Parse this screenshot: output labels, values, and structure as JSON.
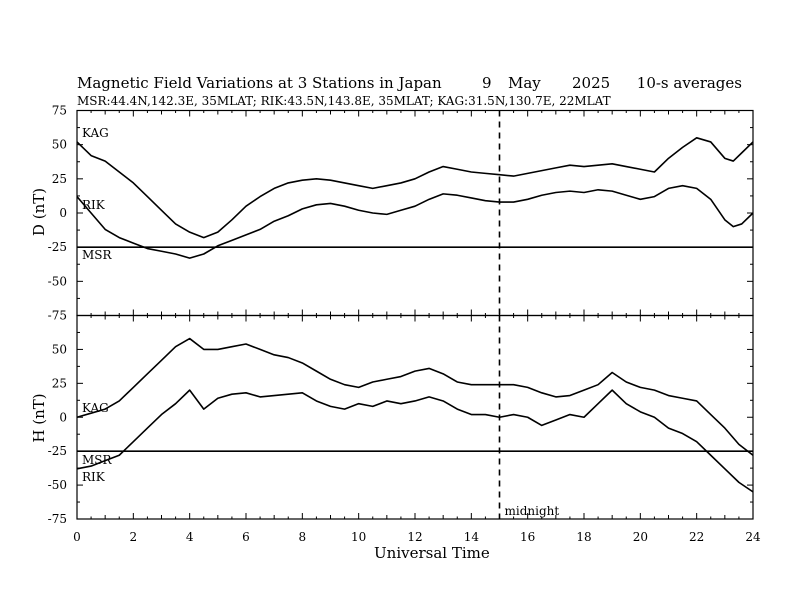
{
  "header": {
    "title": "Magnetic Field Variations at 3 Stations in Japan",
    "day": "9",
    "month": "May",
    "year": "2025",
    "averaging": "10-s averages",
    "stations_line": "MSR:44.4N,142.3E, 35MLAT;  RIK:43.5N,143.8E, 35MLAT;  KAG:31.5N,130.7E, 22MLAT"
  },
  "chart_data": [
    {
      "type": "line",
      "panel": "D",
      "ylabel": "D (nT)",
      "ylim": [
        -75,
        75
      ],
      "yticks": [
        75,
        50,
        25,
        0,
        -25,
        -50,
        -75
      ],
      "xlim": [
        0,
        24
      ],
      "midnight_ut": 15,
      "series": [
        {
          "name": "KAG",
          "x": [
            0,
            0.5,
            1,
            1.5,
            2,
            2.5,
            3,
            3.5,
            4,
            4.5,
            5,
            5.5,
            6,
            6.5,
            7,
            7.5,
            8,
            8.5,
            9,
            9.5,
            10,
            10.5,
            11,
            11.5,
            12,
            12.5,
            13,
            13.5,
            14,
            14.5,
            15,
            15.5,
            16,
            16.5,
            17,
            17.5,
            18,
            18.5,
            19,
            19.5,
            20,
            20.5,
            21,
            21.5,
            22,
            22.5,
            23,
            23.3,
            23.6,
            24
          ],
          "values": [
            52,
            42,
            38,
            30,
            22,
            12,
            2,
            -8,
            -14,
            -18,
            -14,
            -5,
            5,
            12,
            18,
            22,
            24,
            25,
            24,
            22,
            20,
            18,
            20,
            22,
            25,
            30,
            34,
            32,
            30,
            29,
            28,
            27,
            29,
            31,
            33,
            35,
            34,
            35,
            36,
            34,
            32,
            30,
            40,
            48,
            55,
            52,
            40,
            38,
            44,
            52
          ]
        },
        {
          "name": "RIK",
          "x": [
            0,
            0.5,
            1,
            1.5,
            2,
            2.5,
            3,
            3.5,
            4,
            4.5,
            5,
            5.5,
            6,
            6.5,
            7,
            7.5,
            8,
            8.5,
            9,
            9.5,
            10,
            10.5,
            11,
            11.5,
            12,
            12.5,
            13,
            13.5,
            14,
            14.5,
            15,
            15.5,
            16,
            16.5,
            17,
            17.5,
            18,
            18.5,
            19,
            19.5,
            20,
            20.5,
            21,
            21.5,
            22,
            22.5,
            23,
            23.3,
            23.6,
            24
          ],
          "values": [
            12,
            0,
            -12,
            -18,
            -22,
            -26,
            -28,
            -30,
            -33,
            -30,
            -24,
            -20,
            -16,
            -12,
            -6,
            -2,
            3,
            6,
            7,
            5,
            2,
            0,
            -1,
            2,
            5,
            10,
            14,
            13,
            11,
            9,
            8,
            8,
            10,
            13,
            15,
            16,
            15,
            17,
            16,
            13,
            10,
            12,
            18,
            20,
            18,
            10,
            -5,
            -10,
            -8,
            0
          ]
        },
        {
          "name": "MSR",
          "x": [
            0,
            24
          ],
          "values": [
            -25,
            -25
          ]
        }
      ]
    },
    {
      "type": "line",
      "panel": "H",
      "ylabel": "H (nT)",
      "ylim": [
        -75,
        75
      ],
      "yticks": [
        50,
        25,
        0,
        -25,
        -50,
        -75
      ],
      "xlim": [
        0,
        24
      ],
      "xlabel": "Universal Time",
      "xticks": [
        0,
        2,
        4,
        6,
        8,
        10,
        12,
        14,
        16,
        18,
        20,
        22,
        24
      ],
      "annotation": "midnight",
      "series": [
        {
          "name": "KAG",
          "x": [
            0,
            0.5,
            1,
            1.5,
            2,
            2.5,
            3,
            3.5,
            4,
            4.5,
            5,
            5.5,
            6,
            6.5,
            7,
            7.5,
            8,
            8.5,
            9,
            9.5,
            10,
            10.5,
            11,
            11.5,
            12,
            12.5,
            13,
            13.5,
            14,
            14.5,
            15,
            15.5,
            16,
            16.5,
            17,
            17.5,
            18,
            18.5,
            19,
            19.5,
            20,
            20.5,
            21,
            21.5,
            22,
            22.5,
            23,
            23.5,
            24
          ],
          "values": [
            0,
            3,
            6,
            12,
            22,
            32,
            42,
            52,
            58,
            50,
            50,
            52,
            54,
            50,
            46,
            44,
            40,
            34,
            28,
            24,
            22,
            26,
            28,
            30,
            34,
            36,
            32,
            26,
            24,
            24,
            24,
            24,
            22,
            18,
            15,
            16,
            20,
            24,
            33,
            26,
            22,
            20,
            16,
            14,
            12,
            2,
            -8,
            -20,
            -28
          ]
        },
        {
          "name": "RIK",
          "x": [
            0,
            0.5,
            1,
            1.5,
            2,
            2.5,
            3,
            3.5,
            4,
            4.5,
            5,
            5.5,
            6,
            6.5,
            7,
            7.5,
            8,
            8.5,
            9,
            9.5,
            10,
            10.5,
            11,
            11.5,
            12,
            12.5,
            13,
            13.5,
            14,
            14.5,
            15,
            15.5,
            16,
            16.5,
            17,
            17.5,
            18,
            18.5,
            19,
            19.5,
            20,
            20.5,
            21,
            21.5,
            22,
            22.5,
            23,
            23.5,
            24
          ],
          "values": [
            -38,
            -36,
            -32,
            -28,
            -18,
            -8,
            2,
            10,
            20,
            6,
            14,
            17,
            18,
            15,
            16,
            17,
            18,
            12,
            8,
            6,
            10,
            8,
            12,
            10,
            12,
            15,
            12,
            6,
            2,
            2,
            0,
            2,
            0,
            -6,
            -2,
            2,
            0,
            10,
            20,
            10,
            4,
            0,
            -8,
            -12,
            -18,
            -28,
            -38,
            -48,
            -55
          ]
        },
        {
          "name": "MSR",
          "x": [
            0,
            24
          ],
          "values": [
            -25,
            -25
          ]
        }
      ]
    }
  ]
}
